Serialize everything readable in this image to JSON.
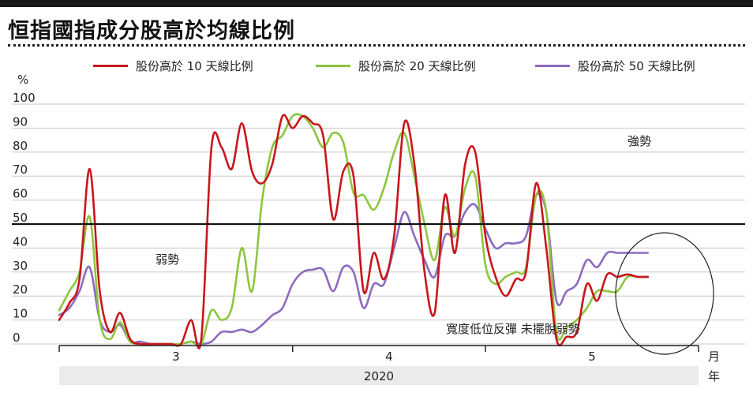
{
  "header": {
    "title": "恒指國指成分股高於均線比例"
  },
  "chart_data": {
    "type": "line",
    "ylabel": "%",
    "ylim": [
      0,
      100
    ],
    "yticks": [
      "100",
      "90",
      "80",
      "70",
      "60",
      "50",
      "40",
      "30",
      "20",
      "10",
      "0"
    ],
    "x_month_labels": [
      "3",
      "4",
      "5"
    ],
    "x_unit_label": "月",
    "year": "2020",
    "year_unit_label": "年",
    "legend_position": "top",
    "reference_line": 50,
    "annotations": [
      "強勢",
      "弱勢",
      "寬度低位反彈 未擺脫弱勢"
    ],
    "x_range": [
      0,
      63
    ],
    "month_start_index": {
      "3": 0,
      "4": 23,
      "5": 42
    },
    "series": [
      {
        "name": "股份高於 10 天線比例",
        "color": "#c8161d",
        "x": [
          0,
          1,
          2,
          3,
          4,
          5,
          6,
          7,
          8,
          9,
          10,
          11,
          12,
          13,
          14,
          15,
          16,
          17,
          18,
          19,
          20,
          21,
          22,
          23,
          24,
          25,
          26,
          27,
          28,
          29,
          30,
          31,
          32,
          33,
          34,
          35,
          36,
          37,
          38,
          39,
          40,
          41,
          42,
          43,
          44,
          45,
          46,
          47,
          48,
          49,
          50,
          51,
          52,
          53,
          54,
          55,
          56,
          57,
          58
        ],
        "values": [
          10,
          17,
          27,
          73,
          22,
          5,
          13,
          2,
          0,
          0,
          0,
          0,
          0,
          10,
          2,
          82,
          82,
          73,
          92,
          72,
          67,
          75,
          95,
          90,
          95,
          92,
          87,
          52,
          72,
          70,
          22,
          38,
          27,
          45,
          92,
          75,
          30,
          13,
          62,
          38,
          75,
          80,
          45,
          28,
          20,
          27,
          30,
          67,
          40,
          2,
          3,
          5,
          25,
          18,
          29,
          28,
          29,
          28,
          28
        ],
        "visible_x_end": 58
      },
      {
        "name": "股份高於 20 天線比例",
        "color": "#8cc63f",
        "x": [
          0,
          1,
          2,
          3,
          4,
          5,
          6,
          7,
          8,
          9,
          10,
          11,
          12,
          13,
          14,
          15,
          16,
          17,
          18,
          19,
          20,
          21,
          22,
          23,
          24,
          25,
          26,
          27,
          28,
          29,
          30,
          31,
          32,
          33,
          34,
          35,
          36,
          37,
          38,
          39,
          40,
          41,
          42,
          43,
          44,
          45,
          46,
          47,
          48,
          49,
          50,
          51,
          52,
          53,
          54,
          55,
          56,
          57,
          58
        ],
        "values": [
          14,
          22,
          30,
          53,
          10,
          2,
          9,
          1,
          0,
          0,
          0,
          0,
          0,
          1,
          0,
          14,
          10,
          15,
          40,
          22,
          60,
          82,
          87,
          95,
          95,
          90,
          82,
          88,
          84,
          63,
          62,
          56,
          65,
          80,
          88,
          70,
          50,
          35,
          57,
          45,
          65,
          70,
          33,
          25,
          28,
          30,
          32,
          62,
          55,
          5,
          7,
          10,
          15,
          22,
          22,
          22,
          28,
          28,
          28
        ],
        "visible_x_end": 58
      },
      {
        "name": "股份高於 50 天線比例",
        "color": "#8e6bbf",
        "x": [
          0,
          1,
          2,
          3,
          4,
          5,
          6,
          7,
          8,
          9,
          10,
          11,
          12,
          13,
          14,
          15,
          16,
          17,
          18,
          19,
          20,
          21,
          22,
          23,
          24,
          25,
          26,
          27,
          28,
          29,
          30,
          31,
          32,
          33,
          34,
          35,
          36,
          37,
          38,
          39,
          40,
          41,
          42,
          43,
          44,
          45,
          46,
          47,
          48,
          49,
          50,
          51,
          52,
          53,
          54,
          55,
          56,
          57,
          58
        ],
        "values": [
          12,
          15,
          22,
          32,
          10,
          5,
          8,
          1,
          1,
          0,
          0,
          0,
          0,
          1,
          0,
          1,
          5,
          5,
          6,
          5,
          8,
          12,
          15,
          25,
          30,
          31,
          31,
          22,
          32,
          30,
          15,
          25,
          25,
          40,
          55,
          45,
          35,
          28,
          45,
          45,
          55,
          58,
          48,
          40,
          42,
          42,
          45,
          62,
          55,
          18,
          22,
          25,
          35,
          32,
          38,
          38,
          38,
          38,
          38
        ],
        "visible_x_end": 58
      }
    ]
  }
}
